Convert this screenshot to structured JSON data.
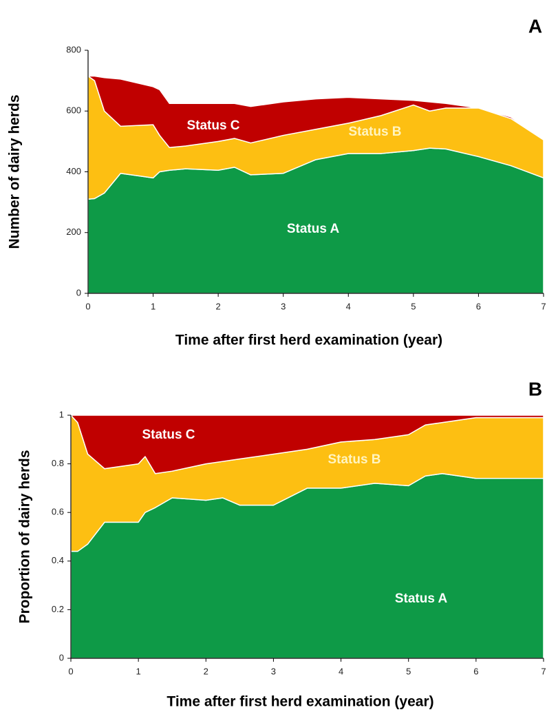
{
  "chart_data": [
    {
      "type": "stacked_area",
      "panel_label": "A",
      "x_label": "Time after first herd examination (year)",
      "y_label": "Number of dairy herds",
      "x": [
        0,
        0.1,
        0.25,
        0.5,
        1,
        1.1,
        1.25,
        1.5,
        2,
        2.25,
        2.5,
        3,
        3.5,
        4,
        4.5,
        5,
        5.25,
        5.5,
        6,
        6.5,
        7
      ],
      "series": [
        {
          "name": "Status A",
          "color": "#0e9a47",
          "values": [
            310,
            312,
            330,
            395,
            380,
            400,
            405,
            410,
            405,
            415,
            390,
            395,
            440,
            460,
            460,
            470,
            478,
            475,
            450,
            420,
            380
          ]
        },
        {
          "name": "Status B",
          "color": "#fdbf12",
          "values": [
            405,
            388,
            270,
            155,
            175,
            120,
            75,
            75,
            95,
            95,
            105,
            125,
            100,
            100,
            125,
            150,
            122,
            135,
            160,
            155,
            125
          ]
        },
        {
          "name": "Status C",
          "color": "#c00000",
          "values": [
            0,
            15,
            110,
            155,
            125,
            150,
            145,
            140,
            125,
            115,
            120,
            110,
            100,
            85,
            55,
            15,
            30,
            15,
            0,
            5,
            0
          ]
        }
      ],
      "xlim": [
        0,
        7
      ],
      "xticks": [
        0,
        1,
        2,
        3,
        4,
        5,
        6,
        7
      ],
      "ylim": [
        0,
        800
      ],
      "yticks": [
        0,
        200,
        400,
        600,
        800
      ]
    },
    {
      "type": "stacked_area",
      "panel_label": "B",
      "x_label": "Time after first herd examination (year)",
      "y_label": "Proportion of dairy herds",
      "x": [
        0,
        0.1,
        0.25,
        0.5,
        1,
        1.1,
        1.25,
        1.5,
        2,
        2.25,
        2.5,
        3,
        3.5,
        4,
        4.5,
        5,
        5.25,
        5.5,
        6,
        6.5,
        7
      ],
      "series": [
        {
          "name": "Status A",
          "color": "#0e9a47",
          "values": [
            0.44,
            0.44,
            0.47,
            0.56,
            0.56,
            0.6,
            0.62,
            0.66,
            0.65,
            0.66,
            0.63,
            0.63,
            0.7,
            0.7,
            0.72,
            0.71,
            0.75,
            0.76,
            0.74,
            0.74,
            0.74
          ]
        },
        {
          "name": "Status B",
          "color": "#fdbf12",
          "values": [
            0.56,
            0.53,
            0.37,
            0.22,
            0.24,
            0.23,
            0.14,
            0.11,
            0.15,
            0.15,
            0.19,
            0.21,
            0.16,
            0.19,
            0.18,
            0.21,
            0.21,
            0.21,
            0.25,
            0.25,
            0.25
          ]
        },
        {
          "name": "Status C",
          "color": "#c00000",
          "values": [
            0,
            0.03,
            0.16,
            0.22,
            0.2,
            0.17,
            0.24,
            0.23,
            0.2,
            0.19,
            0.18,
            0.16,
            0.14,
            0.11,
            0.1,
            0.08,
            0.04,
            0.03,
            0.01,
            0.01,
            0.01
          ]
        }
      ],
      "xlim": [
        0,
        7
      ],
      "xticks": [
        0,
        1,
        2,
        3,
        4,
        5,
        6,
        7
      ],
      "ylim": [
        0,
        1
      ],
      "yticks": [
        0,
        0.2,
        0.4,
        0.6,
        0.8,
        1
      ]
    }
  ]
}
